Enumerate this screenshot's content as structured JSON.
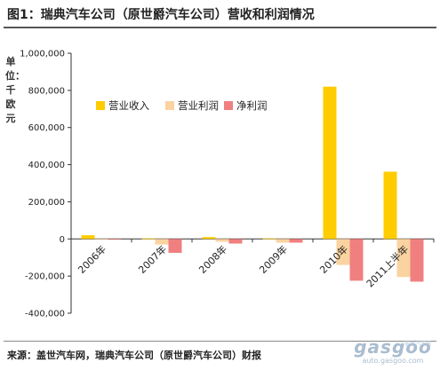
{
  "title": "图1：瑞典汽车公司（原世爵汽车公司）营收和利润情况",
  "source": "来源：盖世汽车网，瑞典汽车公司（原世爵汽车公司）财报",
  "watermark": {
    "logo": "gasgoo",
    "url": "auto.gasgoo.com",
    "cn": "盖世汽车网"
  },
  "chart_data": {
    "type": "bar",
    "title": "图1：瑞典汽车公司（原世爵汽车公司）营收和利润情况",
    "ylabel": "单位：千欧元",
    "xlabel": "",
    "ylim": [
      -400000,
      1000000
    ],
    "yticks": [
      -400000,
      -200000,
      0,
      200000,
      400000,
      600000,
      800000,
      1000000
    ],
    "ytick_labels": [
      "-400,000",
      "-200,000",
      "0",
      "200,000",
      "400,000",
      "600,000",
      "800,000",
      "1,000,000"
    ],
    "categories": [
      "2006年",
      "2007年",
      "2008年",
      "2009年",
      "2010年",
      "2011上半年"
    ],
    "series": [
      {
        "name": "营业收入",
        "color": "#FFCC00",
        "values": [
          20000,
          3000,
          10000,
          3000,
          820000,
          362000
        ]
      },
      {
        "name": "营业利润",
        "color": "#FAD3A0",
        "values": [
          -3000,
          -30000,
          -15000,
          -20000,
          -140000,
          -205000
        ]
      },
      {
        "name": "净利润",
        "color": "#F08080",
        "values": [
          -3000,
          -75000,
          -25000,
          -20000,
          -225000,
          -230000
        ]
      }
    ],
    "grid": false,
    "legend": "top-center"
  }
}
